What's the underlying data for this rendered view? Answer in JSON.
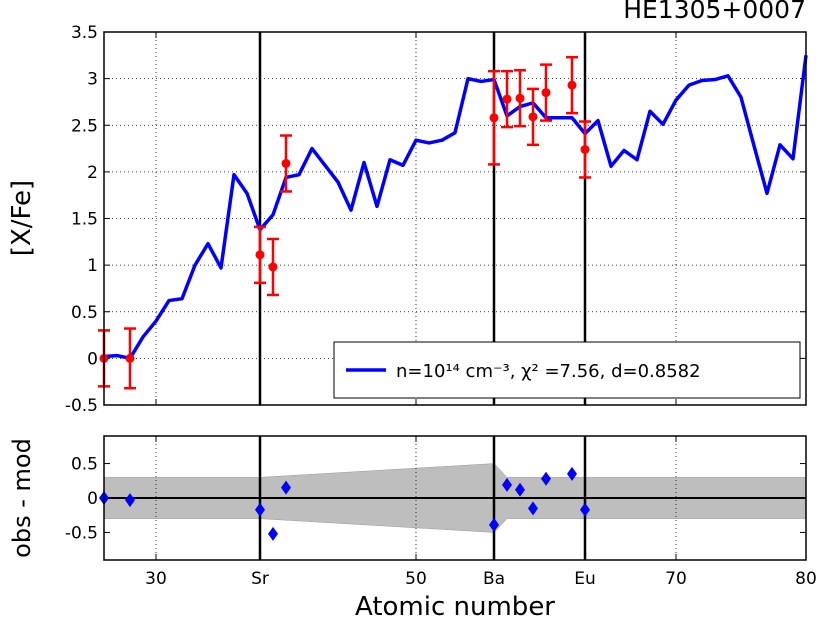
{
  "chart_data": [
    {
      "type": "line",
      "title": "HE1305+0007",
      "ylabel": "[X/Fe]",
      "xlim": [
        26,
        80
      ],
      "ylim": [
        -0.5,
        3.5
      ],
      "yticks": [
        3.5,
        3.0,
        2.5,
        2.0,
        1.5,
        1.0,
        0.5,
        0.0,
        -0.5
      ],
      "grid": true,
      "legend": "lower right",
      "x": [
        26,
        27,
        28,
        29,
        30,
        31,
        32,
        33,
        34,
        35,
        36,
        37,
        38,
        39,
        40,
        41,
        42,
        43,
        44,
        45,
        46,
        47,
        48,
        49,
        50,
        51,
        52,
        53,
        54,
        55,
        56,
        57,
        58,
        59,
        60,
        61,
        62,
        63,
        64,
        65,
        66,
        67,
        68,
        69,
        70,
        71,
        72,
        73,
        74,
        75,
        76,
        77,
        78,
        79,
        80
      ],
      "series": [
        {
          "name": "n=10¹⁴ cm⁻³, χ² =7.56, d=0.8582",
          "color": "#0000ff",
          "values": [
            0.02,
            0.03,
            0.0,
            0.23,
            0.4,
            0.62,
            0.64,
            1.0,
            1.23,
            0.97,
            1.97,
            1.77,
            1.38,
            1.54,
            1.94,
            1.97,
            2.25,
            2.07,
            1.89,
            1.59,
            2.1,
            1.63,
            2.13,
            2.07,
            2.34,
            2.31,
            2.34,
            2.42,
            3.0,
            2.97,
            2.99,
            2.6,
            2.7,
            2.74,
            2.58,
            2.58,
            2.58,
            2.41,
            2.55,
            2.06,
            2.23,
            2.13,
            2.65,
            2.51,
            2.77,
            2.93,
            2.98,
            2.99,
            3.03,
            2.8,
            2.28,
            1.77,
            2.29,
            2.14,
            3.25
          ]
        },
        {
          "color": "#ff0000",
          "x": [
            26,
            28,
            38,
            39,
            40,
            56,
            57,
            58,
            59,
            60,
            62,
            63
          ],
          "values": [
            0.0,
            0.0,
            1.11,
            0.98,
            2.09,
            2.58,
            2.78,
            2.79,
            2.59,
            2.85,
            2.93,
            2.24
          ],
          "errors": [
            0.3,
            0.32,
            0.3,
            0.3,
            0.3,
            0.5,
            0.3,
            0.3,
            0.3,
            0.3,
            0.3,
            0.3
          ]
        }
      ]
    },
    {
      "type": "scatter",
      "ylabel": "obs - mod",
      "xlabel": "Atomic number",
      "xlim": [
        26,
        80
      ],
      "ylim": [
        -0.9,
        0.9
      ],
      "xticks": [
        30,
        {
          "value": 38,
          "label": "Sr"
        },
        50,
        {
          "value": 56,
          "label": "Ba"
        },
        {
          "value": 63,
          "label": "Eu"
        },
        70,
        80
      ],
      "yticks": [
        0.5,
        0.0,
        -0.5
      ],
      "grid": true,
      "vlines": [
        38,
        56,
        63
      ],
      "x": [
        26,
        28,
        38,
        39,
        40,
        56,
        57,
        58,
        59,
        60,
        62,
        63
      ],
      "values": [
        0.0,
        -0.03,
        -0.17,
        -0.52,
        0.15,
        -0.39,
        0.19,
        0.12,
        -0.15,
        0.28,
        0.35,
        -0.17
      ],
      "color": "#0000ff",
      "band": {
        "x": [
          26,
          38,
          56,
          57,
          80
        ],
        "values": [
          0.3,
          0.3,
          0.5,
          0.3,
          0.3
        ],
        "color": "#bebebe"
      }
    }
  ]
}
